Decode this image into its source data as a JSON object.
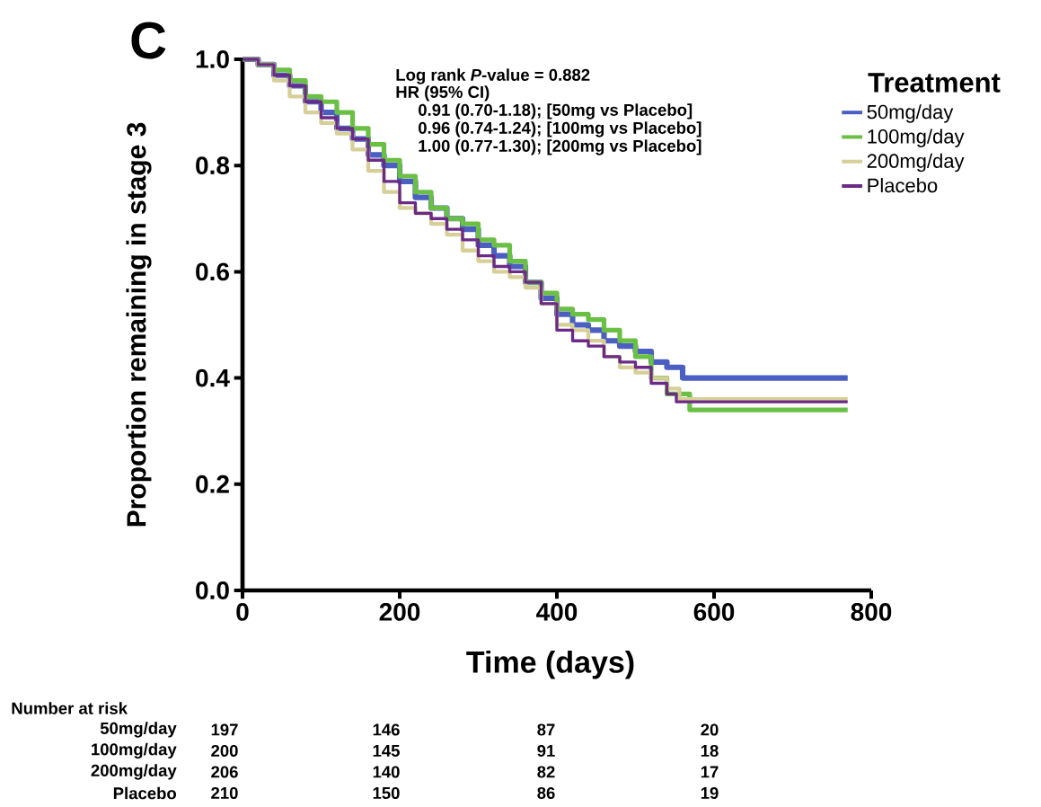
{
  "chart_data": {
    "type": "step",
    "xlabel": "Time (days)",
    "ylabel": "Proportion remaining in stage 3",
    "legend_title": "Treatment",
    "legend": "top right",
    "line_style": "solid",
    "xlim": [
      0,
      800
    ],
    "ylim": [
      0,
      1
    ],
    "xticks": [
      0,
      200,
      400,
      600,
      800
    ],
    "yticks": [
      {
        "value": 0,
        "label": "0.0"
      },
      {
        "value": 0.2,
        "label": "0.2"
      },
      {
        "value": 0.4,
        "label": "0.4"
      },
      {
        "value": 0.6,
        "label": "0.6"
      },
      {
        "value": 0.8,
        "label": "0.8"
      },
      {
        "value": 1,
        "label": "1.0"
      }
    ],
    "series": [
      {
        "name": "50mg/day",
        "color": "#4a5fc1",
        "x": [
          0,
          20,
          40,
          60,
          80,
          100,
          120,
          140,
          160,
          180,
          200,
          220,
          240,
          260,
          280,
          300,
          320,
          340,
          360,
          380,
          400,
          420,
          440,
          460,
          480,
          500,
          520,
          540,
          560,
          770
        ],
        "values": [
          1.0,
          0.99,
          0.97,
          0.95,
          0.92,
          0.9,
          0.87,
          0.85,
          0.82,
          0.8,
          0.77,
          0.74,
          0.72,
          0.7,
          0.68,
          0.65,
          0.63,
          0.61,
          0.58,
          0.55,
          0.52,
          0.5,
          0.49,
          0.47,
          0.46,
          0.45,
          0.43,
          0.42,
          0.4,
          0.4
        ]
      },
      {
        "name": "100mg/day",
        "color": "#6abf45",
        "x": [
          0,
          20,
          40,
          60,
          80,
          100,
          120,
          140,
          160,
          180,
          200,
          220,
          240,
          260,
          280,
          300,
          320,
          340,
          360,
          380,
          400,
          420,
          440,
          460,
          480,
          500,
          520,
          540,
          569,
          770
        ],
        "values": [
          1.0,
          0.99,
          0.98,
          0.96,
          0.93,
          0.92,
          0.9,
          0.87,
          0.84,
          0.81,
          0.78,
          0.75,
          0.72,
          0.7,
          0.69,
          0.66,
          0.65,
          0.62,
          0.58,
          0.56,
          0.53,
          0.52,
          0.51,
          0.49,
          0.47,
          0.44,
          0.4,
          0.37,
          0.34,
          0.34
        ]
      },
      {
        "name": "200mg/day",
        "color": "#d6cf98",
        "x": [
          0,
          20,
          40,
          60,
          80,
          100,
          120,
          140,
          160,
          180,
          200,
          220,
          240,
          260,
          280,
          300,
          320,
          340,
          360,
          380,
          400,
          420,
          440,
          460,
          480,
          500,
          520,
          540,
          556,
          770
        ],
        "values": [
          1.0,
          0.99,
          0.96,
          0.93,
          0.9,
          0.88,
          0.86,
          0.83,
          0.79,
          0.75,
          0.72,
          0.71,
          0.69,
          0.67,
          0.64,
          0.62,
          0.6,
          0.59,
          0.57,
          0.54,
          0.5,
          0.49,
          0.47,
          0.44,
          0.42,
          0.41,
          0.4,
          0.38,
          0.36,
          0.36
        ]
      },
      {
        "name": "Placebo",
        "color": "#6b2a86",
        "x": [
          0,
          20,
          40,
          60,
          80,
          100,
          120,
          140,
          160,
          180,
          200,
          220,
          240,
          260,
          280,
          300,
          320,
          340,
          360,
          380,
          400,
          420,
          440,
          460,
          480,
          500,
          520,
          540,
          552,
          770
        ],
        "values": [
          1.0,
          0.99,
          0.97,
          0.95,
          0.92,
          0.89,
          0.87,
          0.85,
          0.81,
          0.77,
          0.73,
          0.71,
          0.7,
          0.68,
          0.66,
          0.63,
          0.61,
          0.6,
          0.58,
          0.54,
          0.49,
          0.47,
          0.46,
          0.44,
          0.43,
          0.42,
          0.39,
          0.37,
          0.355,
          0.355
        ]
      }
    ],
    "annotations": [
      "C",
      "Log rank *P*-value = 0.882",
      "HR (95% CI)",
      "0.91 (0.70-1.18); [50mg vs Placebo]",
      "0.96 (0.74-1.24); [100mg vs Placebo]",
      "1.00 (0.77-1.30); [200mg vs Placebo]",
      "Number at risk",
      "50mg/day",
      "197",
      "146",
      "87",
      "20",
      "100mg/day",
      "200",
      "145",
      "91",
      "18",
      "200mg/day",
      "206",
      "140",
      "82",
      "17",
      "Placebo",
      "210",
      "150",
      "86",
      "19"
    ]
  }
}
